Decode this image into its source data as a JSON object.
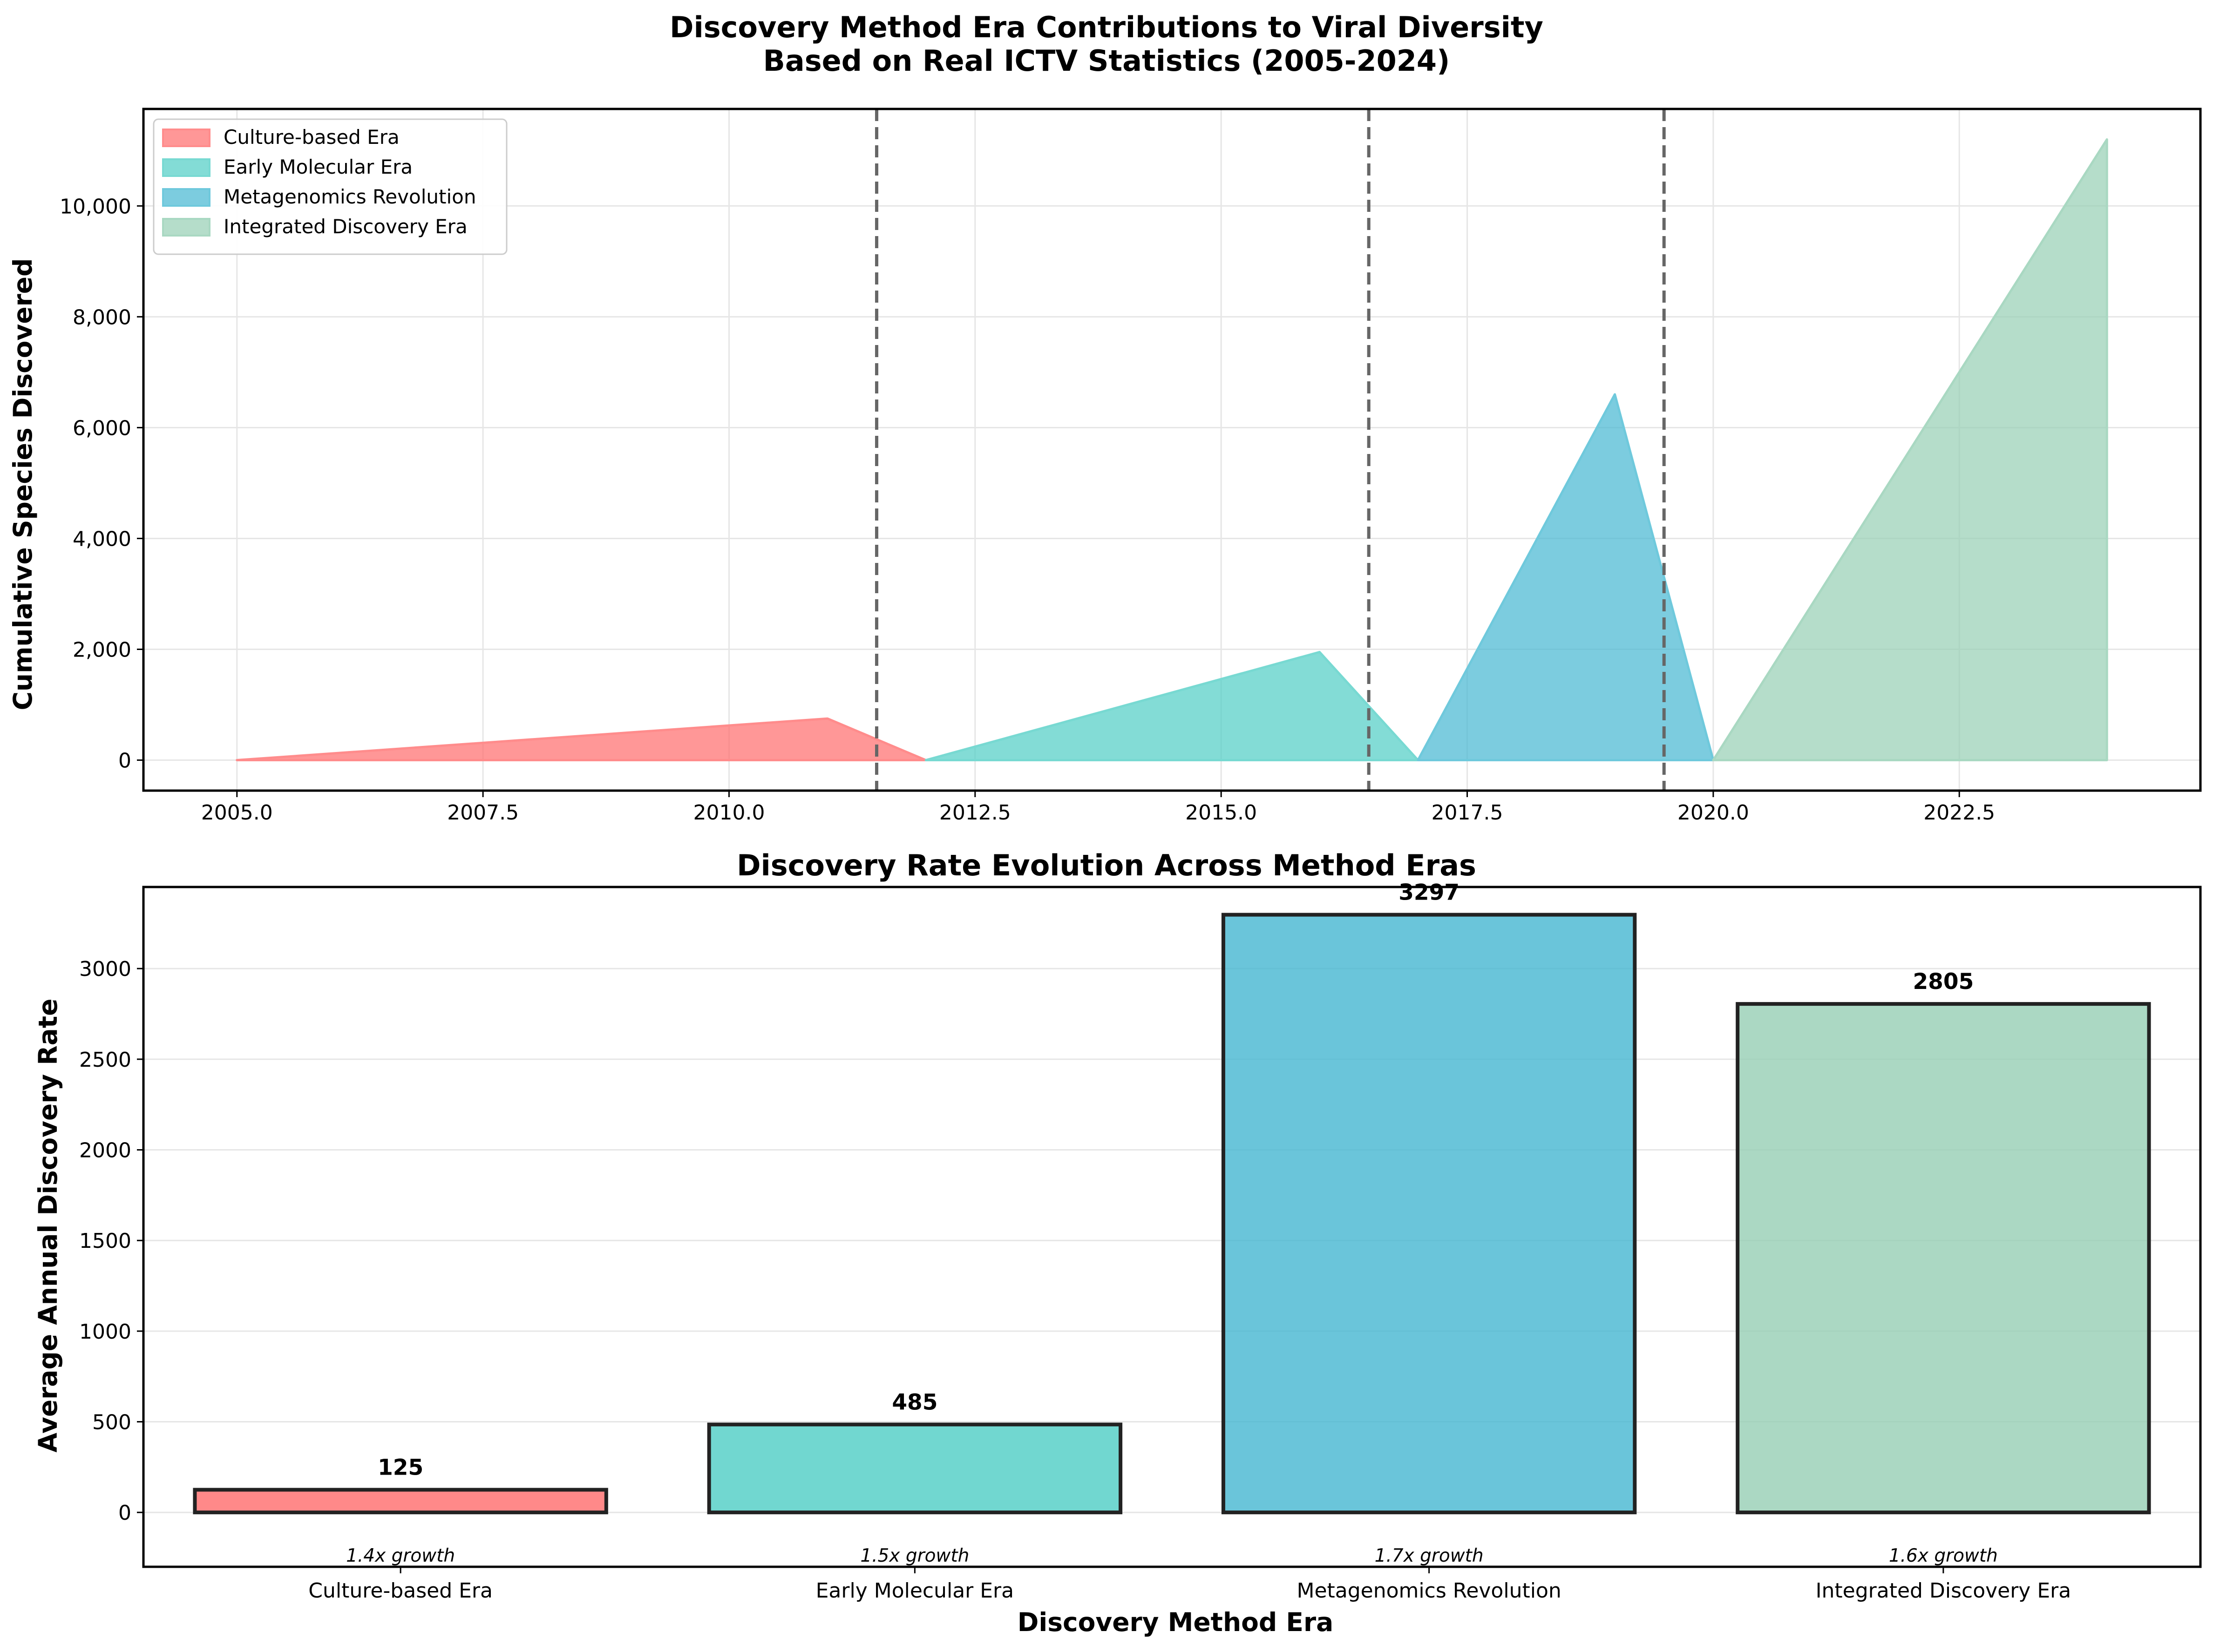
{
  "chart_data": [
    {
      "type": "area",
      "title_lines": [
        "Discovery Method Era Contributions to Viral Diversity",
        "Based on Real ICTV Statistics (2005-2024)"
      ],
      "xlabel": "",
      "ylabel": "Cumulative Species Discovered",
      "xlim": [
        2004.05,
        2024.95
      ],
      "ylim": [
        -550,
        11750
      ],
      "x_ticks": [
        2005.0,
        2007.5,
        2010.0,
        2012.5,
        2015.0,
        2017.5,
        2020.0,
        2022.5
      ],
      "x_tick_labels": [
        "2005.0",
        "2007.5",
        "2010.0",
        "2012.5",
        "2015.0",
        "2017.5",
        "2020.0",
        "2022.5"
      ],
      "y_ticks": [
        0,
        2000,
        4000,
        6000,
        8000,
        10000
      ],
      "y_tick_labels": [
        "0",
        "2,000",
        "4,000",
        "6,000",
        "8,000",
        "10,000"
      ],
      "grid": true,
      "legend_position": "top-left",
      "era_boundaries": [
        2011.5,
        2016.5,
        2019.5
      ],
      "series": [
        {
          "name": "Culture-based Era",
          "color": "#ff6b6b",
          "edge": "#ff8c8c",
          "x": [
            2005,
            2011,
            2012
          ],
          "y": [
            0,
            750,
            0
          ]
        },
        {
          "name": "Early Molecular Era",
          "color": "#4ecdc4",
          "edge": "#78d9d2",
          "x": [
            2012,
            2016,
            2017
          ],
          "y": [
            0,
            1950,
            0
          ]
        },
        {
          "name": "Metagenomics Revolution",
          "color": "#45b7d1",
          "edge": "#6fc9dc",
          "x": [
            2017,
            2019,
            2020
          ],
          "y": [
            0,
            6600,
            0
          ]
        },
        {
          "name": "Integrated Discovery Era",
          "color": "#96ceb4",
          "edge": "#a9d8c2",
          "x": [
            2020,
            2024
          ],
          "y": [
            0,
            11200
          ]
        }
      ]
    },
    {
      "type": "bar",
      "title": "Discovery Rate Evolution Across Method Eras",
      "xlabel": "Discovery Method Era",
      "ylabel": "Average Annual Discovery Rate",
      "ylim": [
        -300,
        3450
      ],
      "y_ticks": [
        0,
        500,
        1000,
        1500,
        2000,
        2500,
        3000
      ],
      "y_tick_labels": [
        "0",
        "500",
        "1000",
        "1500",
        "2000",
        "2500",
        "3000"
      ],
      "grid": true,
      "categories": [
        "Culture-based Era",
        "Early Molecular Era",
        "Metagenomics Revolution",
        "Integrated Discovery Era"
      ],
      "values": [
        125,
        485,
        3297,
        2805
      ],
      "value_labels": [
        "125",
        "485",
        "3297",
        "2805"
      ],
      "growth_labels": [
        "1.4x growth",
        "1.5x growth",
        "1.7x growth",
        "1.6x growth"
      ],
      "colors": [
        "#ff6b6b",
        "#4ecdc4",
        "#45b7d1",
        "#96ceb4"
      ]
    }
  ]
}
